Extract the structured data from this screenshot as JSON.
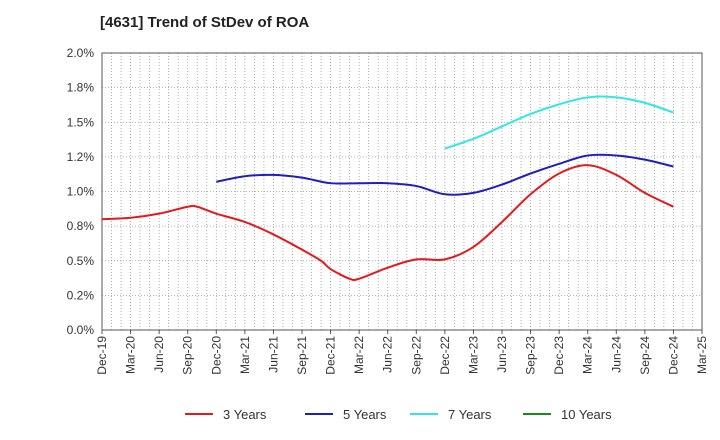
{
  "chart_data": {
    "type": "line",
    "title": "[4631]  Trend of StDev of ROA",
    "xlabel": "",
    "ylabel": "",
    "x_ticks": [
      "Dec-19",
      "Mar-20",
      "Jun-20",
      "Sep-20",
      "Dec-20",
      "Mar-21",
      "Jun-21",
      "Sep-21",
      "Dec-21",
      "Mar-22",
      "Jun-22",
      "Sep-22",
      "Dec-22",
      "Mar-23",
      "Jun-23",
      "Sep-23",
      "Dec-23",
      "Mar-24",
      "Jun-24",
      "Sep-24",
      "Dec-24",
      "Mar-25"
    ],
    "y_ticks": [
      "0.0%",
      "0.2%",
      "0.5%",
      "0.8%",
      "1.0%",
      "1.2%",
      "1.5%",
      "1.8%",
      "2.0%"
    ],
    "ylim": [
      0,
      2.0
    ],
    "grid": true,
    "legend_position": "bottom",
    "series": [
      {
        "name": "3 Years",
        "color": "#e31a1c",
        "x": [
          "Dec-19",
          "Mar-20",
          "Jun-20",
          "Sep-20",
          "Oct-20",
          "Dec-20",
          "Mar-21",
          "Jun-21",
          "Sep-21",
          "Nov-21",
          "Dec-21",
          "Feb-22",
          "Mar-22",
          "Jun-22",
          "Sep-22",
          "Dec-22",
          "Mar-23",
          "Jun-23",
          "Sep-23",
          "Dec-23",
          "Mar-24",
          "Jun-24",
          "Sep-24",
          "Dec-24"
        ],
        "values": [
          0.8,
          0.81,
          0.84,
          0.89,
          0.89,
          0.84,
          0.78,
          0.69,
          0.58,
          0.5,
          0.44,
          0.37,
          0.37,
          0.45,
          0.51,
          0.51,
          0.6,
          0.78,
          0.98,
          1.13,
          1.19,
          1.12,
          0.99,
          0.89
        ]
      },
      {
        "name": "5 Years",
        "color": "#1f1fbf",
        "x": [
          "Dec-20",
          "Mar-21",
          "Jun-21",
          "Sep-21",
          "Dec-21",
          "Mar-22",
          "Jun-22",
          "Sep-22",
          "Dec-22",
          "Mar-23",
          "Jun-23",
          "Sep-23",
          "Dec-23",
          "Mar-24",
          "Jun-24",
          "Sep-24",
          "Dec-24"
        ],
        "values": [
          1.07,
          1.11,
          1.12,
          1.1,
          1.06,
          1.06,
          1.06,
          1.04,
          0.98,
          0.99,
          1.05,
          1.13,
          1.2,
          1.26,
          1.26,
          1.23,
          1.18
        ]
      },
      {
        "name": "7 Years",
        "color": "#33e6e6",
        "x": [
          "Dec-22",
          "Mar-23",
          "Jun-23",
          "Sep-23",
          "Dec-23",
          "Mar-24",
          "Jun-24",
          "Sep-24",
          "Dec-24"
        ],
        "values": [
          1.31,
          1.38,
          1.47,
          1.56,
          1.63,
          1.68,
          1.68,
          1.64,
          1.57
        ]
      },
      {
        "name": "10 Years",
        "color": "#1a8a1a",
        "x": [],
        "values": []
      }
    ]
  }
}
